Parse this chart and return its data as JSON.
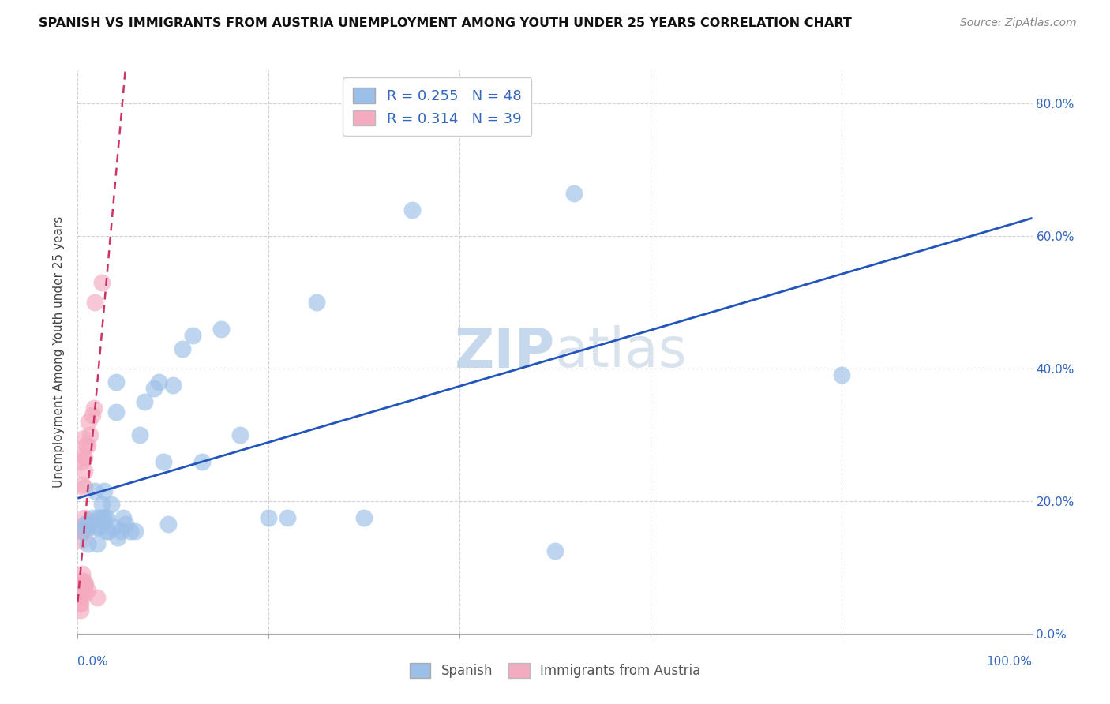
{
  "title": "SPANISH VS IMMIGRANTS FROM AUSTRIA UNEMPLOYMENT AMONG YOUTH UNDER 25 YEARS CORRELATION CHART",
  "source": "Source: ZipAtlas.com",
  "ylabel": "Unemployment Among Youth under 25 years",
  "xlim": [
    0,
    1.0
  ],
  "ylim": [
    0,
    0.85
  ],
  "xticks": [
    0.0,
    0.2,
    0.4,
    0.6,
    0.8,
    1.0
  ],
  "xticklabels": [
    "0.0%",
    "",
    "",
    "",
    "",
    "100.0%"
  ],
  "yticks": [
    0.0,
    0.2,
    0.4,
    0.6,
    0.8
  ],
  "yticklabels": [
    "0.0%",
    "20.0%",
    "40.0%",
    "60.0%",
    "80.0%"
  ],
  "blue_color": "#9bbfe8",
  "pink_color": "#f4aabf",
  "trend_blue_color": "#2255bb",
  "trend_pink_color": "#cc3366",
  "tick_color": "#3366bb",
  "grid_color": "#cccccc",
  "legend1_label": "R = 0.255   N = 48",
  "legend2_label": "R = 0.314   N = 39",
  "bottom_label1": "Spanish",
  "bottom_label2": "Immigrants from Austria",
  "spanish_x": [
    0.005,
    0.008,
    0.01,
    0.01,
    0.012,
    0.015,
    0.018,
    0.02,
    0.02,
    0.022,
    0.022,
    0.025,
    0.025,
    0.028,
    0.028,
    0.03,
    0.03,
    0.032,
    0.035,
    0.038,
    0.04,
    0.04,
    0.042,
    0.045,
    0.048,
    0.05,
    0.055,
    0.06,
    0.065,
    0.07,
    0.08,
    0.085,
    0.09,
    0.095,
    0.1,
    0.11,
    0.12,
    0.13,
    0.15,
    0.17,
    0.2,
    0.22,
    0.25,
    0.3,
    0.35,
    0.5,
    0.52,
    0.8
  ],
  "spanish_y": [
    0.155,
    0.165,
    0.135,
    0.165,
    0.16,
    0.175,
    0.215,
    0.135,
    0.16,
    0.16,
    0.175,
    0.175,
    0.195,
    0.175,
    0.215,
    0.155,
    0.175,
    0.155,
    0.195,
    0.16,
    0.335,
    0.38,
    0.145,
    0.155,
    0.175,
    0.165,
    0.155,
    0.155,
    0.3,
    0.35,
    0.37,
    0.38,
    0.26,
    0.165,
    0.375,
    0.43,
    0.45,
    0.26,
    0.46,
    0.3,
    0.175,
    0.175,
    0.5,
    0.175,
    0.64,
    0.125,
    0.665,
    0.39
  ],
  "austria_x": [
    0.002,
    0.002,
    0.003,
    0.003,
    0.003,
    0.004,
    0.004,
    0.004,
    0.004,
    0.004,
    0.005,
    0.005,
    0.005,
    0.005,
    0.005,
    0.005,
    0.006,
    0.006,
    0.006,
    0.007,
    0.007,
    0.007,
    0.007,
    0.007,
    0.007,
    0.008,
    0.008,
    0.008,
    0.009,
    0.01,
    0.01,
    0.011,
    0.012,
    0.013,
    0.015,
    0.017,
    0.018,
    0.02,
    0.025
  ],
  "austria_y": [
    0.045,
    0.055,
    0.035,
    0.045,
    0.14,
    0.06,
    0.065,
    0.08,
    0.155,
    0.26,
    0.065,
    0.07,
    0.075,
    0.09,
    0.225,
    0.27,
    0.07,
    0.08,
    0.295,
    0.075,
    0.165,
    0.175,
    0.22,
    0.245,
    0.265,
    0.06,
    0.075,
    0.155,
    0.285,
    0.065,
    0.285,
    0.32,
    0.17,
    0.3,
    0.33,
    0.34,
    0.5,
    0.055,
    0.53
  ]
}
